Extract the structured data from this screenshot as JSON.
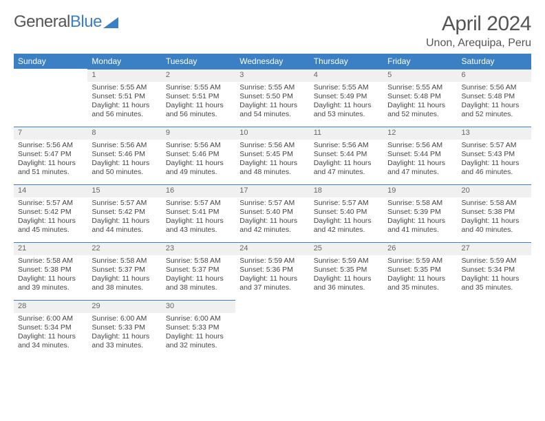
{
  "logo": {
    "word1": "General",
    "word2": "Blue"
  },
  "title": "April 2024",
  "location": "Unon, Arequipa, Peru",
  "colors": {
    "header_bg": "#3b7fc4",
    "header_text": "#ffffff",
    "daynum_bg": "#f0f0f0",
    "cell_border_top": "#3b7fc4",
    "page_bg": "#ffffff",
    "text": "#444444",
    "title_text": "#555555"
  },
  "weekdays": [
    "Sunday",
    "Monday",
    "Tuesday",
    "Wednesday",
    "Thursday",
    "Friday",
    "Saturday"
  ],
  "layout": {
    "dimensions": "792x612",
    "columns": 7,
    "rows": 5,
    "start_weekday_index": 1
  },
  "days": [
    {
      "n": "1",
      "sunrise": "5:55 AM",
      "sunset": "5:51 PM",
      "daylight": "11 hours and 56 minutes."
    },
    {
      "n": "2",
      "sunrise": "5:55 AM",
      "sunset": "5:51 PM",
      "daylight": "11 hours and 56 minutes."
    },
    {
      "n": "3",
      "sunrise": "5:55 AM",
      "sunset": "5:50 PM",
      "daylight": "11 hours and 54 minutes."
    },
    {
      "n": "4",
      "sunrise": "5:55 AM",
      "sunset": "5:49 PM",
      "daylight": "11 hours and 53 minutes."
    },
    {
      "n": "5",
      "sunrise": "5:55 AM",
      "sunset": "5:48 PM",
      "daylight": "11 hours and 52 minutes."
    },
    {
      "n": "6",
      "sunrise": "5:56 AM",
      "sunset": "5:48 PM",
      "daylight": "11 hours and 52 minutes."
    },
    {
      "n": "7",
      "sunrise": "5:56 AM",
      "sunset": "5:47 PM",
      "daylight": "11 hours and 51 minutes."
    },
    {
      "n": "8",
      "sunrise": "5:56 AM",
      "sunset": "5:46 PM",
      "daylight": "11 hours and 50 minutes."
    },
    {
      "n": "9",
      "sunrise": "5:56 AM",
      "sunset": "5:46 PM",
      "daylight": "11 hours and 49 minutes."
    },
    {
      "n": "10",
      "sunrise": "5:56 AM",
      "sunset": "5:45 PM",
      "daylight": "11 hours and 48 minutes."
    },
    {
      "n": "11",
      "sunrise": "5:56 AM",
      "sunset": "5:44 PM",
      "daylight": "11 hours and 47 minutes."
    },
    {
      "n": "12",
      "sunrise": "5:56 AM",
      "sunset": "5:44 PM",
      "daylight": "11 hours and 47 minutes."
    },
    {
      "n": "13",
      "sunrise": "5:57 AM",
      "sunset": "5:43 PM",
      "daylight": "11 hours and 46 minutes."
    },
    {
      "n": "14",
      "sunrise": "5:57 AM",
      "sunset": "5:42 PM",
      "daylight": "11 hours and 45 minutes."
    },
    {
      "n": "15",
      "sunrise": "5:57 AM",
      "sunset": "5:42 PM",
      "daylight": "11 hours and 44 minutes."
    },
    {
      "n": "16",
      "sunrise": "5:57 AM",
      "sunset": "5:41 PM",
      "daylight": "11 hours and 43 minutes."
    },
    {
      "n": "17",
      "sunrise": "5:57 AM",
      "sunset": "5:40 PM",
      "daylight": "11 hours and 42 minutes."
    },
    {
      "n": "18",
      "sunrise": "5:57 AM",
      "sunset": "5:40 PM",
      "daylight": "11 hours and 42 minutes."
    },
    {
      "n": "19",
      "sunrise": "5:58 AM",
      "sunset": "5:39 PM",
      "daylight": "11 hours and 41 minutes."
    },
    {
      "n": "20",
      "sunrise": "5:58 AM",
      "sunset": "5:38 PM",
      "daylight": "11 hours and 40 minutes."
    },
    {
      "n": "21",
      "sunrise": "5:58 AM",
      "sunset": "5:38 PM",
      "daylight": "11 hours and 39 minutes."
    },
    {
      "n": "22",
      "sunrise": "5:58 AM",
      "sunset": "5:37 PM",
      "daylight": "11 hours and 38 minutes."
    },
    {
      "n": "23",
      "sunrise": "5:58 AM",
      "sunset": "5:37 PM",
      "daylight": "11 hours and 38 minutes."
    },
    {
      "n": "24",
      "sunrise": "5:59 AM",
      "sunset": "5:36 PM",
      "daylight": "11 hours and 37 minutes."
    },
    {
      "n": "25",
      "sunrise": "5:59 AM",
      "sunset": "5:35 PM",
      "daylight": "11 hours and 36 minutes."
    },
    {
      "n": "26",
      "sunrise": "5:59 AM",
      "sunset": "5:35 PM",
      "daylight": "11 hours and 35 minutes."
    },
    {
      "n": "27",
      "sunrise": "5:59 AM",
      "sunset": "5:34 PM",
      "daylight": "11 hours and 35 minutes."
    },
    {
      "n": "28",
      "sunrise": "6:00 AM",
      "sunset": "5:34 PM",
      "daylight": "11 hours and 34 minutes."
    },
    {
      "n": "29",
      "sunrise": "6:00 AM",
      "sunset": "5:33 PM",
      "daylight": "11 hours and 33 minutes."
    },
    {
      "n": "30",
      "sunrise": "6:00 AM",
      "sunset": "5:33 PM",
      "daylight": "11 hours and 32 minutes."
    }
  ],
  "labels": {
    "sunrise": "Sunrise:",
    "sunset": "Sunset:",
    "daylight": "Daylight:"
  }
}
